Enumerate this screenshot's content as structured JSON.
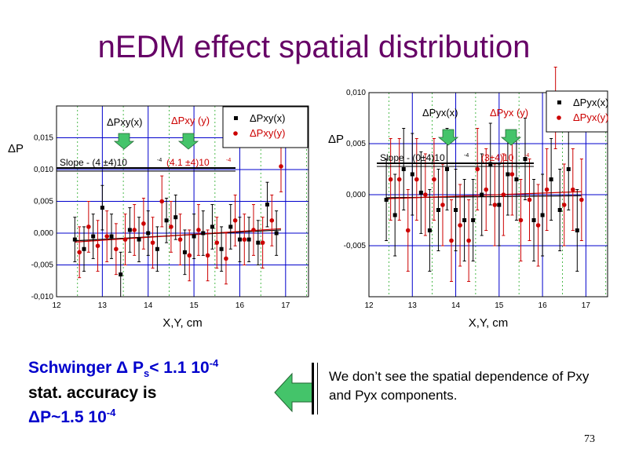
{
  "title": "nEDM effect spatial distribution",
  "colors": {
    "title": "#660066",
    "black_series": "#000000",
    "red_series": "#cc0000",
    "grid": "#0000cc",
    "green_arrow": "#44c46a"
  },
  "left_chart": {
    "ylabel": "ΔP",
    "xlabel": "X,Y, cm",
    "legend": [
      "ΔPxy(x)",
      "ΔPxy(y)"
    ],
    "arrow_labels": [
      "ΔPxy(x)",
      "ΔPxy (y)"
    ],
    "slope_label": "Slope - (4 ±4)10",
    "slope_exp": "-4",
    "slope_red": "(4.1 ±4)10",
    "slope_red_exp": "-4"
  },
  "right_chart": {
    "ylabel": "ΔP",
    "xlabel": "X,Y, cm",
    "legend": [
      "ΔPyx(x)",
      "ΔPyx(y)"
    ],
    "arrow_labels": [
      "ΔPyx(x)",
      "ΔPyx (y)"
    ],
    "slope_label": "Slope - (0±4)10",
    "slope_exp": "-4",
    "slope_red": "(3±4)10",
    "slope_red_exp": "-4"
  },
  "schwinger": {
    "line1": "Schwinger Δ P",
    "line1_sub": "s",
    "line1_rest": "< 1.1 10",
    "line1_exp": "-4",
    "line2": "stat. accuracy is",
    "line3": "ΔP~1.5 10",
    "line3_exp": "-4"
  },
  "observation": "We don’t see the spatial dependence of Pxy and Pyx components.",
  "page_number": "73",
  "chart_data": [
    {
      "type": "scatter",
      "xlabel": "X,Y, cm",
      "ylabel": "ΔP",
      "xlim": [
        12,
        17.5
      ],
      "ylim": [
        -0.01,
        0.02
      ],
      "xticks": [
        "12",
        "13",
        "14",
        "15",
        "16",
        "17"
      ],
      "yticks": [
        "-0,010",
        "-0,005",
        "0,000",
        "0,005",
        "0,010",
        "0,015"
      ],
      "grid": true,
      "legend_position": "top-right",
      "series": [
        {
          "name": "ΔPxy(x)",
          "color": "#000000",
          "x": [
            12.4,
            12.6,
            12.8,
            13.0,
            13.2,
            13.4,
            13.6,
            13.8,
            14.0,
            14.2,
            14.4,
            14.6,
            14.8,
            15.0,
            15.2,
            15.4,
            15.6,
            15.8,
            16.0,
            16.2,
            16.4,
            16.6,
            16.8
          ],
          "y": [
            -0.001,
            -0.0025,
            -0.0005,
            0.004,
            -0.0005,
            -0.0065,
            0.0005,
            -0.001,
            0.0,
            -0.0025,
            0.002,
            0.0025,
            -0.003,
            -0.0005,
            0.0,
            0.001,
            -0.0025,
            0.001,
            -0.001,
            -0.001,
            -0.0015,
            0.0045,
            0.0
          ],
          "err": [
            0.0035,
            0.0035,
            0.0035,
            0.0035,
            0.0035,
            0.0035,
            0.0035,
            0.0035,
            0.0035,
            0.0035,
            0.0035,
            0.0035,
            0.0035,
            0.0035,
            0.0035,
            0.0035,
            0.0035,
            0.0035,
            0.0035,
            0.0035,
            0.0035,
            0.0035,
            0.0035
          ]
        },
        {
          "name": "ΔPxy(y)",
          "color": "#cc0000",
          "x": [
            12.5,
            12.7,
            12.9,
            13.1,
            13.3,
            13.5,
            13.7,
            13.9,
            14.1,
            14.3,
            14.5,
            14.7,
            14.9,
            15.1,
            15.3,
            15.5,
            15.7,
            15.9,
            16.1,
            16.3,
            16.5,
            16.7,
            16.9
          ],
          "y": [
            -0.003,
            0.001,
            -0.002,
            -0.0005,
            -0.0025,
            -0.001,
            0.0005,
            0.0015,
            -0.0015,
            0.005,
            0.001,
            -0.001,
            -0.0035,
            0.0005,
            -0.0035,
            -0.0015,
            -0.004,
            0.002,
            -0.001,
            0.0005,
            -0.0015,
            0.002,
            0.0105
          ],
          "err": [
            0.004,
            0.004,
            0.004,
            0.004,
            0.004,
            0.004,
            0.004,
            0.004,
            0.004,
            0.004,
            0.004,
            0.004,
            0.004,
            0.004,
            0.004,
            0.004,
            0.004,
            0.004,
            0.004,
            0.004,
            0.004,
            0.004,
            0.004
          ]
        }
      ],
      "fits": [
        {
          "color": "#000000",
          "x": [
            12.4,
            16.9
          ],
          "y": [
            -0.0012,
            0.0005
          ]
        },
        {
          "color": "#cc0000",
          "x": [
            12.4,
            16.9
          ],
          "y": [
            -0.0014,
            0.0007
          ]
        }
      ]
    },
    {
      "type": "scatter",
      "xlabel": "X,Y, cm",
      "ylabel": "ΔP",
      "xlim": [
        12,
        17.5
      ],
      "ylim": [
        -0.01,
        0.01
      ],
      "xticks": [
        "12",
        "13",
        "14",
        "15",
        "16",
        "17"
      ],
      "yticks": [
        "-0,005",
        "0,000",
        "0,005",
        "0,010"
      ],
      "grid": true,
      "legend_position": "top-right",
      "series": [
        {
          "name": "ΔPyx(x)",
          "color": "#000000",
          "x": [
            12.4,
            12.6,
            12.8,
            13.0,
            13.2,
            13.4,
            13.6,
            13.8,
            14.0,
            14.2,
            14.4,
            14.6,
            14.8,
            15.0,
            15.2,
            15.4,
            15.6,
            15.8,
            16.0,
            16.2,
            16.4,
            16.6,
            16.8
          ],
          "y": [
            -0.0005,
            -0.002,
            0.0025,
            0.002,
            0.0002,
            -0.0035,
            -0.0015,
            0.0025,
            -0.0015,
            -0.0025,
            -0.0025,
            0.0,
            0.003,
            -0.001,
            0.002,
            0.0015,
            0.0035,
            -0.0025,
            -0.002,
            0.0015,
            -0.0015,
            0.0025,
            -0.0035
          ],
          "err": [
            0.004,
            0.004,
            0.004,
            0.004,
            0.004,
            0.004,
            0.004,
            0.004,
            0.004,
            0.004,
            0.004,
            0.004,
            0.004,
            0.004,
            0.004,
            0.004,
            0.004,
            0.004,
            0.004,
            0.004,
            0.004,
            0.004,
            0.004
          ]
        },
        {
          "name": "ΔPyx(y)",
          "color": "#cc0000",
          "x": [
            12.5,
            12.7,
            12.9,
            13.1,
            13.3,
            13.5,
            13.7,
            13.9,
            14.1,
            14.3,
            14.5,
            14.7,
            14.9,
            15.1,
            15.3,
            15.5,
            15.7,
            15.9,
            16.1,
            16.3,
            16.5,
            16.7,
            16.9
          ],
          "y": [
            0.0015,
            0.0015,
            -0.0035,
            0.0015,
            0.0,
            0.0015,
            -0.001,
            -0.0045,
            -0.003,
            -0.0045,
            0.0025,
            0.0005,
            -0.001,
            0.0,
            0.002,
            -0.0025,
            -0.0005,
            -0.003,
            0.0005,
            0.0085,
            -0.001,
            0.0005,
            -0.0005
          ],
          "err": [
            0.004,
            0.004,
            0.004,
            0.004,
            0.004,
            0.004,
            0.004,
            0.004,
            0.004,
            0.004,
            0.004,
            0.004,
            0.004,
            0.004,
            0.004,
            0.004,
            0.004,
            0.004,
            0.004,
            0.004,
            0.004,
            0.004,
            0.004
          ]
        }
      ],
      "fits": [
        {
          "color": "#000000",
          "x": [
            12.4,
            16.9
          ],
          "y": [
            -0.0003,
            -0.0001
          ]
        },
        {
          "color": "#cc0000",
          "x": [
            12.4,
            16.9
          ],
          "y": [
            -0.0004,
            0.0003
          ]
        }
      ]
    }
  ]
}
